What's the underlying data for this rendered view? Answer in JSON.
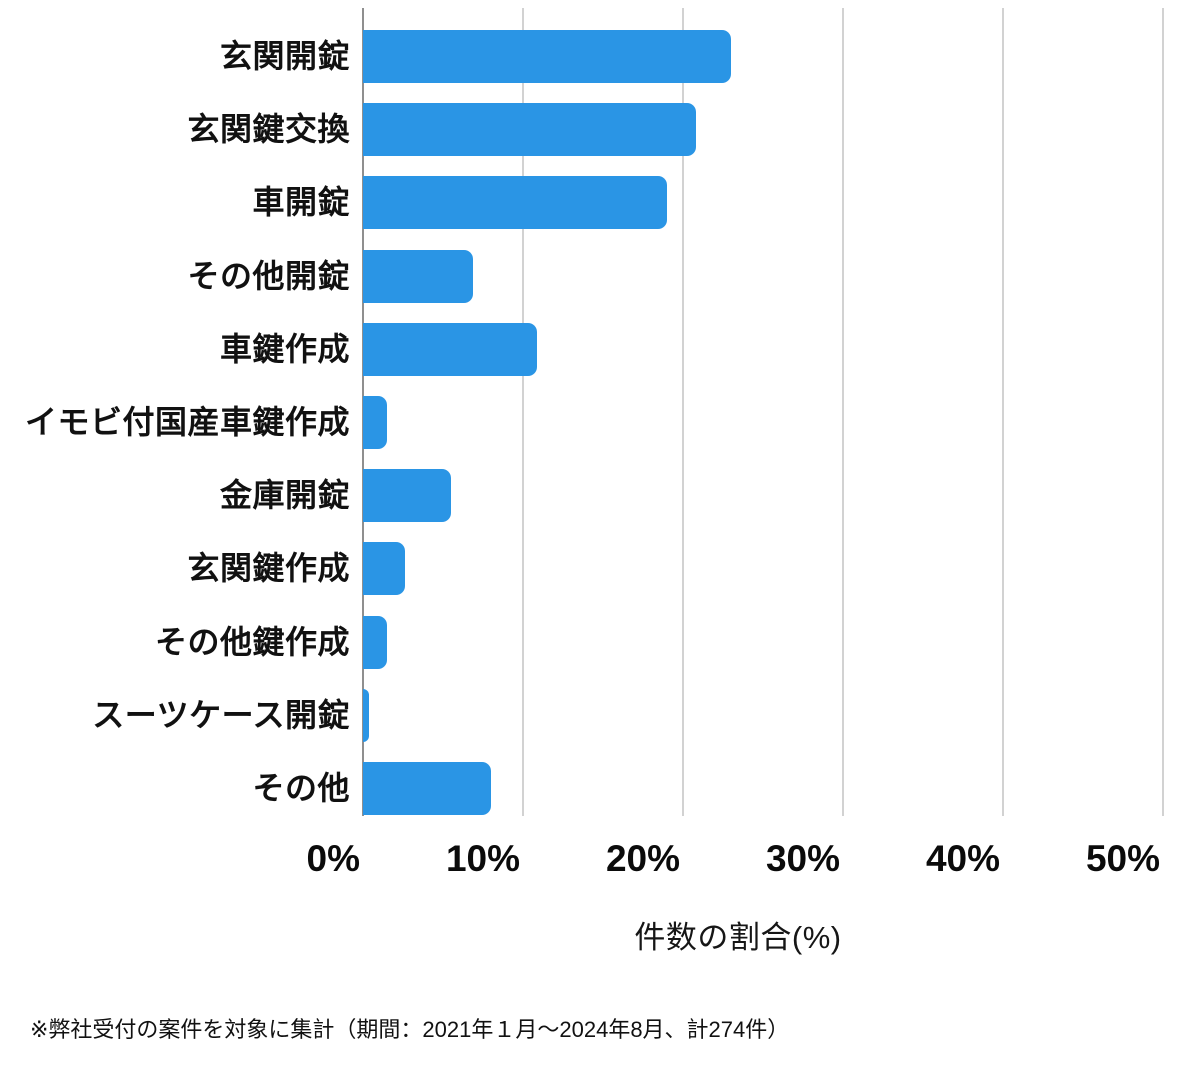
{
  "chart_data": {
    "type": "bar",
    "orientation": "horizontal",
    "title": "",
    "categories": [
      "玄関開錠",
      "玄関鍵交換",
      "車開錠",
      "その他開錠",
      "車鍵作成",
      "イモビ付国産車鍵作成",
      "金庫開錠",
      "玄関鍵作成",
      "その他鍵作成",
      "スーツケース開錠",
      "その他"
    ],
    "values": [
      23.0,
      20.8,
      19.0,
      6.9,
      10.9,
      1.5,
      5.5,
      2.6,
      1.5,
      0.4,
      8.0
    ],
    "xlabel": "件数の割合(%)",
    "ylabel": "",
    "xlim": [
      0,
      50
    ],
    "tick_labels": [
      "0%",
      "10%",
      "20%",
      "30%",
      "40%",
      "50%"
    ],
    "grid": true,
    "legend": false,
    "bar_color": "#2a95e5",
    "gridline_color": "#d2d2d2",
    "axis_line_color": "#8f8f8f"
  },
  "footnote": {
    "text": "※弊社受付の案件を対象に集計（期間：2021年１月～2024年8月、計274件）"
  }
}
